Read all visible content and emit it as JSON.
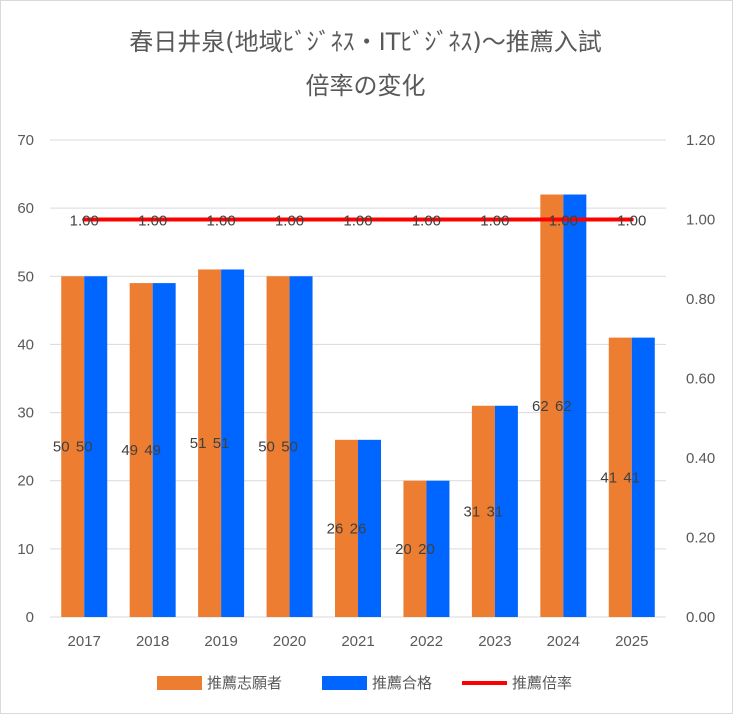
{
  "chart_data": {
    "type": "bar",
    "title_lines": [
      "春日井泉(地域ﾋﾞｼﾞﾈｽ・ITﾋﾞｼﾞﾈｽ)～推薦入試",
      "倍率の変化"
    ],
    "categories": [
      "2017",
      "2018",
      "2019",
      "2020",
      "2021",
      "2022",
      "2023",
      "2024",
      "2025"
    ],
    "series": [
      {
        "name": "推薦志願者",
        "kind": "bar",
        "axis": "primary",
        "color": "#ED7D31",
        "values": [
          50,
          49,
          51,
          50,
          26,
          20,
          31,
          62,
          41
        ],
        "labels": [
          "50",
          "49",
          "51",
          "50",
          "26",
          "20",
          "31",
          "62",
          "41"
        ]
      },
      {
        "name": "推薦合格",
        "kind": "bar",
        "axis": "primary",
        "color": "#0066FF",
        "values": [
          50,
          49,
          51,
          50,
          26,
          20,
          31,
          62,
          41
        ],
        "labels": [
          "50",
          "49",
          "51",
          "50",
          "26",
          "20",
          "31",
          "62",
          "41"
        ]
      },
      {
        "name": "推薦倍率",
        "kind": "line",
        "axis": "secondary",
        "color": "#FF0000",
        "values": [
          1.0,
          1.0,
          1.0,
          1.0,
          1.0,
          1.0,
          1.0,
          1.0,
          1.0
        ],
        "labels": [
          "1.00",
          "1.00",
          "1.00",
          "1.00",
          "1.00",
          "1.00",
          "1.00",
          "1.00",
          "1.00"
        ]
      }
    ],
    "y_axis": {
      "min": 0,
      "max": 70,
      "ticks": [
        "0",
        "10",
        "20",
        "30",
        "40",
        "50",
        "60",
        "70"
      ]
    },
    "y2_axis": {
      "min": 0,
      "max": 1.2,
      "ticks": [
        "0.00",
        "0.20",
        "0.40",
        "0.60",
        "0.80",
        "1.00",
        "1.20"
      ]
    },
    "grid": true,
    "legend_position": "bottom"
  }
}
